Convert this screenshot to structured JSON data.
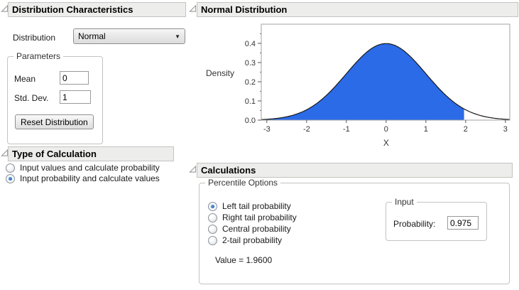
{
  "distribution_characteristics": {
    "title": "Distribution Characteristics",
    "distribution_label": "Distribution",
    "distribution_value": "Normal",
    "parameters": {
      "legend": "Parameters",
      "mean_label": "Mean",
      "mean_value": "0",
      "std_dev_label": "Std. Dev.",
      "std_dev_value": "1",
      "reset_button": "Reset Distribution"
    }
  },
  "type_of_calculation": {
    "title": "Type of Calculation",
    "options": [
      {
        "label": "Input values and calculate probability",
        "selected": false
      },
      {
        "label": "Input probability and calculate values",
        "selected": true
      }
    ]
  },
  "normal_distribution": {
    "title": "Normal Distribution"
  },
  "chart_data": {
    "type": "area",
    "title": "Normal Distribution",
    "xlabel": "X",
    "ylabel": "Density",
    "xlim": [
      -3.14,
      3.11
    ],
    "ylim": [
      0,
      0.5
    ],
    "x_ticks": [
      -3,
      -2,
      -1,
      0,
      1,
      2,
      3
    ],
    "y_ticks": [
      0.0,
      0.1,
      0.2,
      0.3,
      0.4
    ],
    "curve": "normal-pdf",
    "mean": 0,
    "std_dev": 1,
    "peak_density": 0.4,
    "shaded_region": {
      "from": -3.14,
      "to": 1.96
    },
    "fill_color": "#2b6be8",
    "curve_color": "#1a1a1a",
    "frame_color": "#a0a0a0"
  },
  "calculations": {
    "title": "Calculations",
    "percentile_options": {
      "legend": "Percentile Options",
      "options": [
        {
          "label": "Left tail probability",
          "selected": true
        },
        {
          "label": "Right tail probability",
          "selected": false
        },
        {
          "label": "Central probability",
          "selected": false
        },
        {
          "label": "2-tail probability",
          "selected": false
        }
      ],
      "value_text": "Value = 1.9600"
    },
    "input": {
      "legend": "Input",
      "probability_label": "Probability:",
      "probability_value": "0.975"
    }
  },
  "colors": {
    "header_bg": "#ededeb",
    "accent_blue": "#2b6be8",
    "radio_selected": "#2a5fb8"
  }
}
